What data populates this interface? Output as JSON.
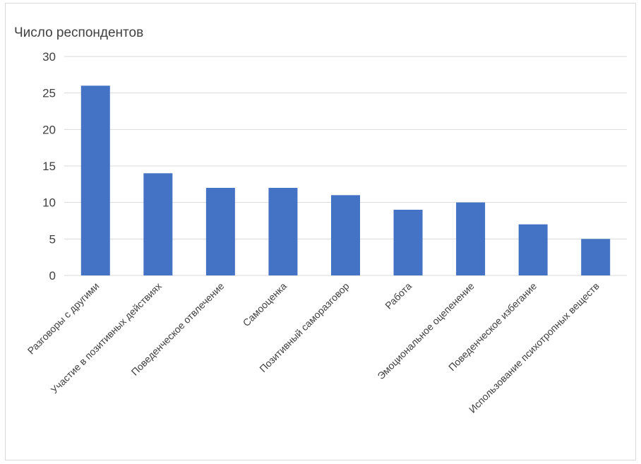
{
  "chart_data": {
    "type": "bar",
    "title": "",
    "xlabel": "",
    "ylabel": "Число респондентов",
    "ylim": [
      0,
      30
    ],
    "yticks": [
      0,
      5,
      10,
      15,
      20,
      25,
      30
    ],
    "grid": true,
    "legend": "none",
    "bar_color": "#4472c4",
    "gridline_color": "#d9d9d9",
    "categories": [
      "Разговоры с другими",
      "Участие в позитивных действиях",
      "Поведенческое отвлечение",
      "Самооценка",
      "Позитивный саморазговор",
      "Работа",
      "Эмоциональное оцепенение",
      "Поведенческое избегание",
      "Использование психотропных веществ"
    ],
    "values": [
      26,
      14,
      12,
      12,
      11,
      9,
      10,
      7,
      5
    ]
  }
}
